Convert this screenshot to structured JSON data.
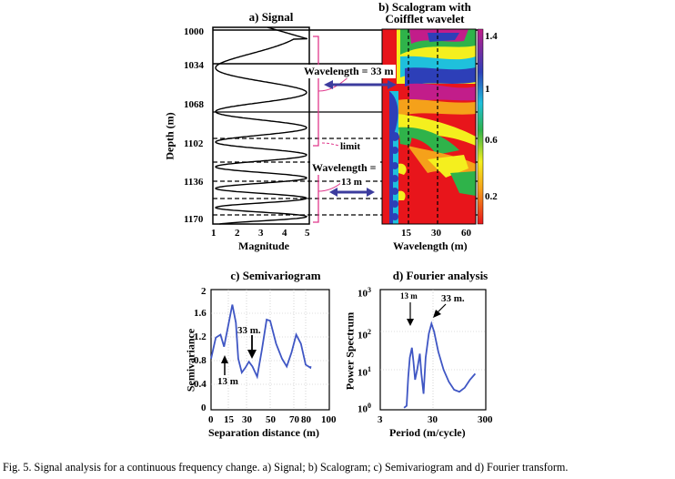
{
  "panel_a": {
    "title": "a) Signal",
    "ylabel": "Depth (m)",
    "xlabel": "Magnitude",
    "yticks": [
      "1000",
      "1034",
      "1068",
      "1102",
      "1136",
      "1170"
    ],
    "xticks": [
      "1",
      "2",
      "3",
      "4",
      "5"
    ]
  },
  "panel_b": {
    "title_line1": "b) Scalogram with",
    "title_line2": "Coifflet wavelet",
    "xlabel": "Wavelength  (m)",
    "xticks": [
      "15",
      "30",
      "60"
    ],
    "colorbar_ticks": [
      "1.4",
      "1",
      "0.6",
      "0.2"
    ],
    "ann_wavelength_33": "Wavelength = 33 m",
    "ann_limit": "limit",
    "ann_wavelength_13_l1": "Wavelength =",
    "ann_wavelength_13_l2": "13 m",
    "colors": {
      "red": "#e8151b",
      "orange": "#f5a11a",
      "yellow": "#f4ef1e",
      "green": "#2fb34a",
      "cyan": "#1fc0dc",
      "blue": "#2d3fb8",
      "magenta": "#c21d8a",
      "arrow": "#3c3c9e",
      "bracket": "#e0388c"
    }
  },
  "panel_c": {
    "title": "c) Semivariogram",
    "ylabel": "Semivariance",
    "xlabel": "Separation distance (m)",
    "yticks": [
      "2",
      "1.6",
      "1.2",
      "0.8",
      "0.4",
      "0"
    ],
    "xticks": [
      "0",
      "15",
      "30",
      "50",
      "70",
      "80",
      "100"
    ],
    "ann_33": "33 m.",
    "ann_13": "13 m",
    "line_color": "#3f56c4"
  },
  "panel_d": {
    "title": "d) Fourier analysis",
    "ylabel": "Power Spectrum",
    "xlabel": "Period (m/cycle)",
    "yticks": [
      "3",
      "2",
      "1",
      "0"
    ],
    "ytick_base": "10",
    "xticks": [
      "3",
      "30",
      "300"
    ],
    "ann_13": "13 m",
    "ann_33": "33 m.",
    "line_color": "#3f56c4"
  },
  "caption": "Fig. 5. Signal analysis  for a continuous frequency change. a) Signal; b) Scalogram; c) Semivariogram and d) Fourier transform."
}
